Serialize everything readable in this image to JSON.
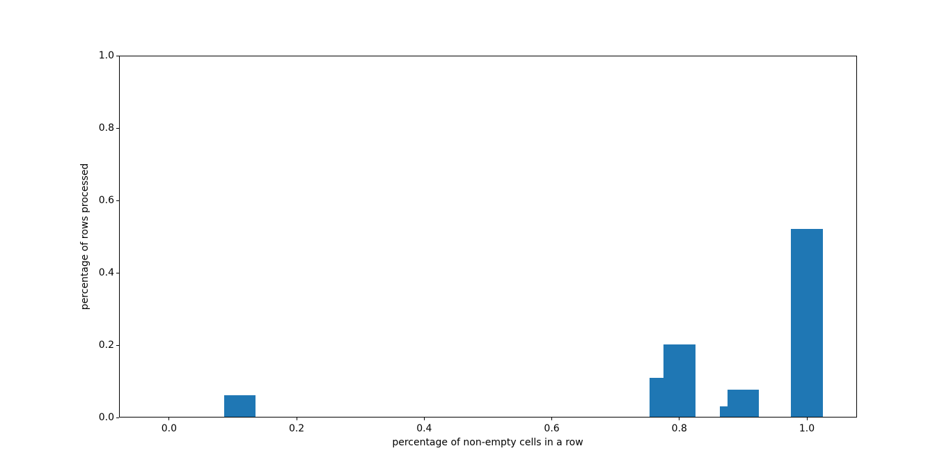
{
  "figure": {
    "background": "#ffffff"
  },
  "chart_data": {
    "type": "bar",
    "title": "",
    "xlabel": "percentage of non-empty cells in a row",
    "ylabel": "percentage of rows processed",
    "bar_color": "#1f77b4",
    "bar_width": 0.05,
    "x": [
      0.111,
      0.778,
      0.8,
      0.889,
      0.9,
      1.0
    ],
    "values": [
      0.062,
      0.109,
      0.201,
      0.031,
      0.077,
      0.522
    ],
    "xlim": [
      -0.079,
      1.078
    ],
    "ylim": [
      0,
      1
    ],
    "grid": false,
    "legend": null,
    "xticks": {
      "values": [
        0.0,
        0.2,
        0.4,
        0.6,
        0.8,
        1.0
      ],
      "labels": [
        "0.0",
        "0.2",
        "0.4",
        "0.6",
        "0.8",
        "1.0"
      ]
    },
    "yticks": {
      "values": [
        0.0,
        0.2,
        0.4,
        0.6,
        0.8,
        1.0
      ],
      "labels": [
        "0.0",
        "0.2",
        "0.4",
        "0.6",
        "0.8",
        "1.0"
      ]
    }
  }
}
